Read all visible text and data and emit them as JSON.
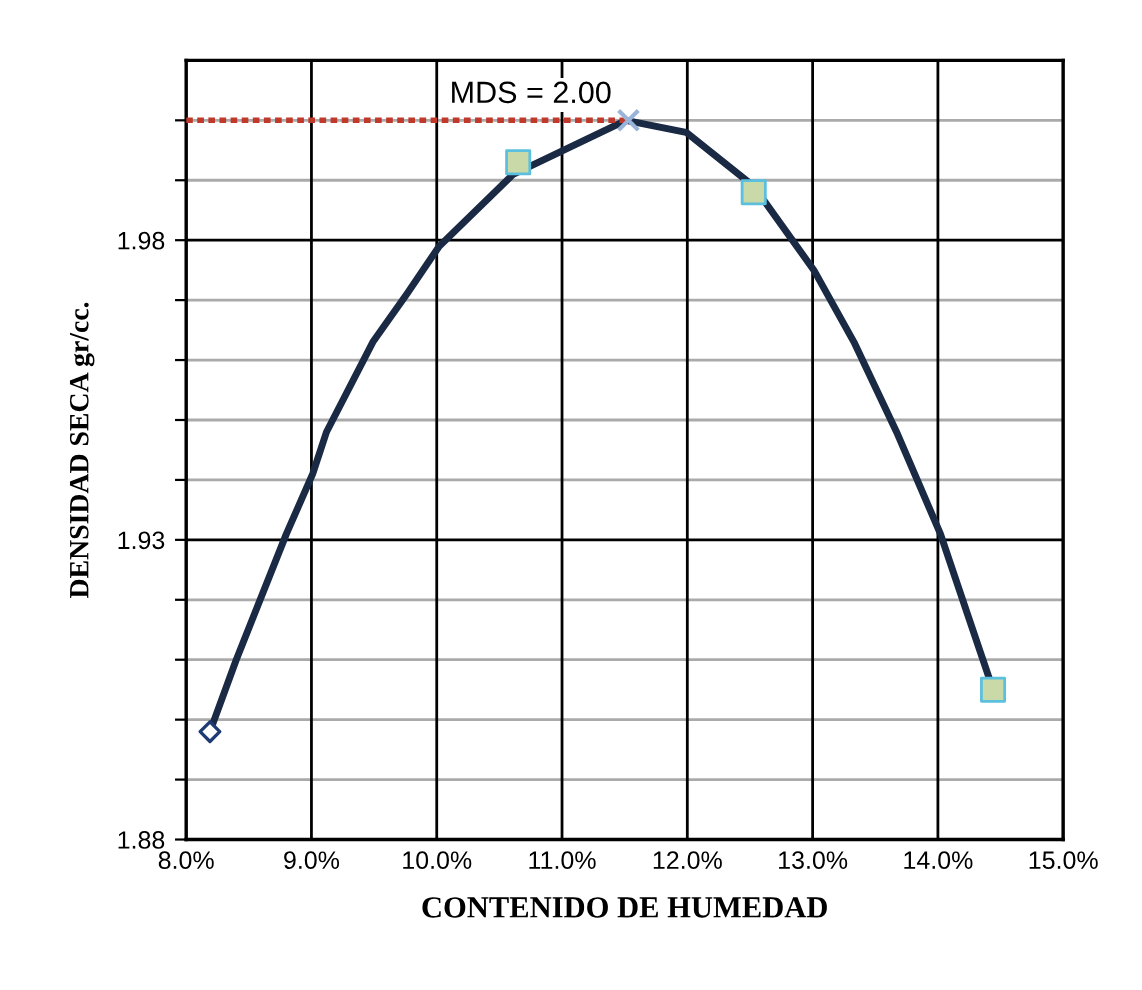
{
  "chart_data": {
    "type": "line",
    "xlabel": "CONTENIDO DE HUMEDAD",
    "ylabel": "DENSIDAD SECA gr/cc.",
    "xlim": [
      8,
      15
    ],
    "ylim": [
      1.88,
      2.01
    ],
    "xticks": [
      {
        "value": 8,
        "label": "8.0%"
      },
      {
        "value": 9,
        "label": "9.0%"
      },
      {
        "value": 10,
        "label": "10.0%"
      },
      {
        "value": 11,
        "label": "11.0%"
      },
      {
        "value": 12,
        "label": "12.0%"
      },
      {
        "value": 13,
        "label": "13.0%"
      },
      {
        "value": 14,
        "label": "14.0%"
      },
      {
        "value": 15,
        "label": "15.0%"
      }
    ],
    "yticks": [
      1.88,
      {
        "value": 1.89,
        "label": null
      },
      {
        "value": 1.9,
        "label": null
      },
      {
        "value": 1.91,
        "label": null
      },
      {
        "value": 1.92,
        "label": null
      },
      1.93,
      {
        "value": 1.94,
        "label": null
      },
      {
        "value": 1.95,
        "label": null
      },
      {
        "value": 1.96,
        "label": null
      },
      {
        "value": 1.97,
        "label": null
      },
      1.98,
      {
        "value": 1.99,
        "label": null
      },
      {
        "value": 2.0,
        "label": null
      }
    ],
    "grid": true,
    "legend": false,
    "series": [
      {
        "color": "#1b2a44",
        "marker": "none",
        "line_style": "solid",
        "x": [
          8.19,
          8.4,
          8.8,
          9.01,
          9.12,
          9.49,
          9.76,
          10.02,
          10.61,
          11.51,
          11.99,
          12.53,
          13.01,
          13.33,
          13.67,
          14.02,
          14.23,
          14.44
        ],
        "values": [
          1.898,
          1.91,
          1.931,
          1.941,
          1.948,
          1.963,
          1.971,
          1.979,
          1.991,
          2.0,
          1.998,
          1.989,
          1.975,
          1.963,
          1.948,
          1.931,
          1.918,
          1.905
        ]
      },
      {
        "type": "line",
        "color": "#c0392b",
        "marker": "none",
        "line_style": "dotted",
        "x": [
          8,
          11.53
        ],
        "values": [
          2.0,
          2.0
        ]
      },
      {
        "type": "scatter",
        "color": "#1f3b73",
        "marker": "diamond",
        "x": [
          8.19
        ],
        "values": [
          1.898
        ]
      },
      {
        "type": "scatter",
        "color": "#c9d9a8",
        "marker": "square",
        "x": [
          10.65,
          12.53,
          14.44
        ],
        "values": [
          1.993,
          1.988,
          1.905
        ]
      },
      {
        "type": "scatter",
        "color": "#9ab3d8",
        "marker": "cross",
        "x": [
          11.53
        ],
        "values": [
          2.0
        ]
      }
    ],
    "annotations": [
      {
        "text": "MDS = 2.00",
        "x": 10.75,
        "y": 2.0
      }
    ]
  }
}
